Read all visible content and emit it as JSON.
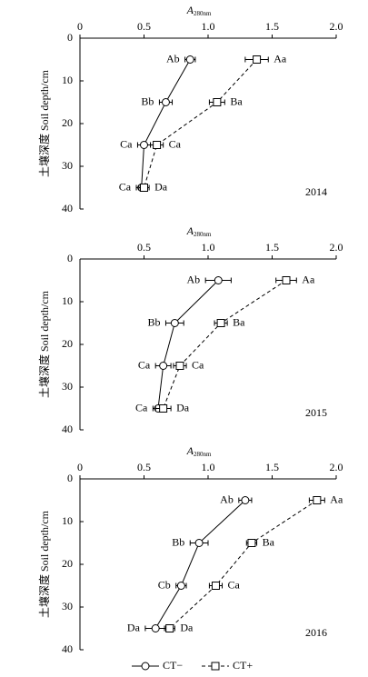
{
  "chart_data": [
    {
      "type": "line",
      "x_label": "A",
      "x_label_sub": "280nm",
      "y_label": "土壤深度 Soil depth/cm",
      "annotation": "2014",
      "xlim": [
        0,
        2.0
      ],
      "xticks": [
        0,
        0.5,
        {
          "value": 1,
          "label": "1.0"
        },
        1.5,
        {
          "value": 2,
          "label": "2.0"
        }
      ],
      "ylim": [
        0,
        40
      ],
      "yticks": [
        0,
        10,
        20,
        30,
        40
      ],
      "y": [
        5,
        15,
        25,
        35
      ],
      "series": [
        {
          "name": "CT−",
          "color": "#000000",
          "marker": "circle",
          "dash": false,
          "values": [
            0.86,
            0.67,
            0.5,
            0.48
          ],
          "errors": [
            0.04,
            0.05,
            0.05,
            0.04
          ],
          "letters": [
            "Ab",
            "Bb",
            "Ca",
            "Ca"
          ]
        },
        {
          "name": "CT+",
          "color": "#000000",
          "marker": "square",
          "dash": true,
          "values": [
            1.38,
            1.07,
            0.6,
            0.5
          ],
          "errors": [
            0.09,
            0.06,
            0.05,
            0.04
          ],
          "letters": [
            "Aa",
            "Ba",
            "Ca",
            "Da"
          ]
        }
      ]
    },
    {
      "type": "line",
      "x_label": "A",
      "x_label_sub": "280nm",
      "y_label": "土壤深度 Soil depth/cm",
      "annotation": "2015",
      "xlim": [
        0,
        2.0
      ],
      "xticks": [
        0.5,
        {
          "value": 1,
          "label": "1.0"
        },
        1.5,
        {
          "value": 2,
          "label": "2.0"
        }
      ],
      "ylim": [
        0,
        40
      ],
      "yticks": [
        0,
        10,
        20,
        30,
        40
      ],
      "y": [
        5,
        15,
        25,
        35
      ],
      "series": [
        {
          "name": "CT−",
          "color": "#000000",
          "marker": "circle",
          "dash": false,
          "values": [
            1.08,
            0.74,
            0.65,
            0.61
          ],
          "errors": [
            0.1,
            0.07,
            0.06,
            0.04
          ],
          "letters": [
            "Ab",
            "Bb",
            "Ca",
            "Ca"
          ]
        },
        {
          "name": "CT+",
          "color": "#000000",
          "marker": "square",
          "dash": true,
          "values": [
            1.61,
            1.1,
            0.78,
            0.65
          ],
          "errors": [
            0.08,
            0.05,
            0.05,
            0.06
          ],
          "letters": [
            "Aa",
            "Ba",
            "Ca",
            "Da"
          ]
        }
      ]
    },
    {
      "type": "line",
      "x_label": "A",
      "x_label_sub": "280nm",
      "y_label": "土壤深度 Soil depth/cm",
      "annotation": "2016",
      "xlim": [
        0,
        2.0
      ],
      "xticks": [
        0,
        0.5,
        {
          "value": 1,
          "label": "1.0"
        },
        1.5,
        {
          "value": 2,
          "label": "2.0"
        }
      ],
      "ylim": [
        0,
        40
      ],
      "yticks": [
        0,
        10,
        20,
        30,
        40
      ],
      "y": [
        5,
        15,
        25,
        35
      ],
      "series": [
        {
          "name": "CT−",
          "color": "#000000",
          "marker": "circle",
          "dash": false,
          "values": [
            1.29,
            0.93,
            0.79,
            0.59
          ],
          "errors": [
            0.05,
            0.07,
            0.04,
            0.08
          ],
          "letters": [
            "Ab",
            "Bb",
            "Cb",
            "Da"
          ]
        },
        {
          "name": "CT+",
          "color": "#000000",
          "marker": "square",
          "dash": true,
          "values": [
            1.85,
            1.34,
            1.06,
            0.7
          ],
          "errors": [
            0.06,
            0.04,
            0.05,
            0.04
          ],
          "letters": [
            "Aa",
            "Ba",
            "Ca",
            "Da"
          ]
        }
      ]
    }
  ]
}
